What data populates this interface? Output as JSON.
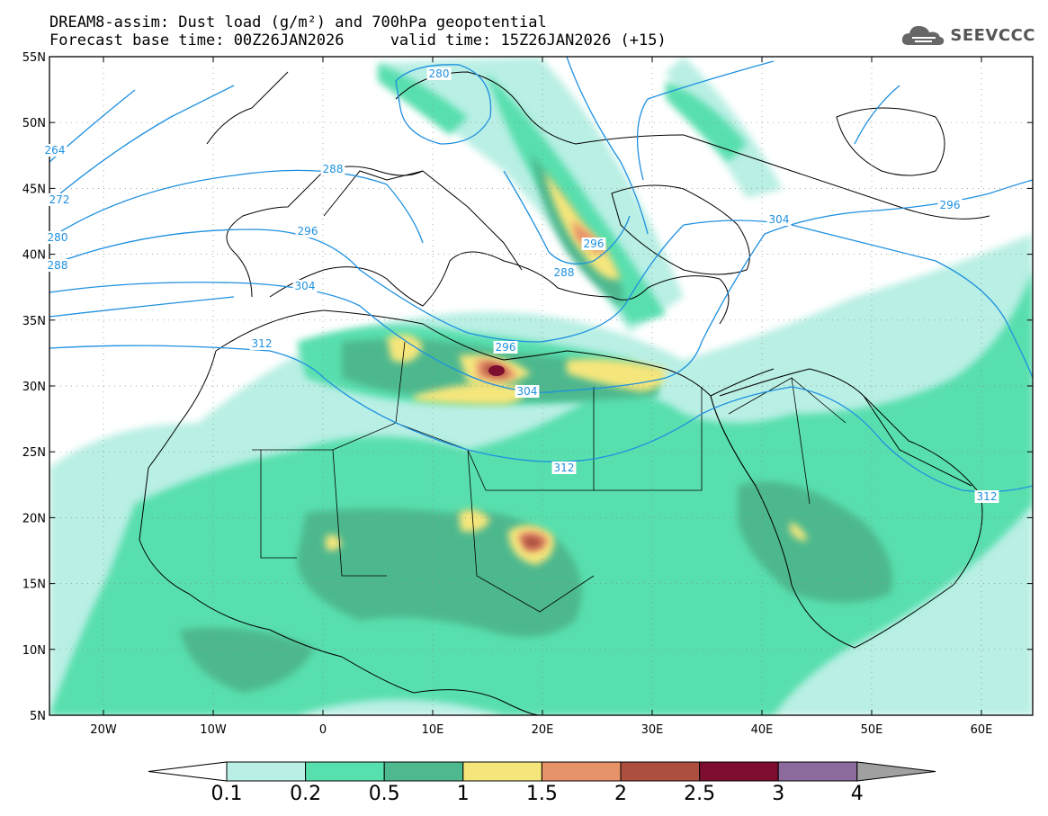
{
  "header": {
    "title_line1": "DREAM8-assim: Dust load (g/m²) and 700hPa geopotential",
    "title_line2": "Forecast base time: 00Z26JAN2026     valid time: 15Z26JAN2026 (+15)",
    "logo_text": "SEEVCCC"
  },
  "map": {
    "lat_labels": [
      "55N",
      "50N",
      "45N",
      "40N",
      "35N",
      "30N",
      "25N",
      "20N",
      "15N",
      "10N",
      "5N"
    ],
    "lon_labels": [
      "20W",
      "10W",
      "0",
      "10E",
      "20E",
      "30E",
      "40E",
      "50E",
      "60E"
    ],
    "contour_labels": [
      "280",
      "288",
      "296",
      "304",
      "312",
      "264",
      "272",
      "280",
      "288",
      "296",
      "304",
      "312",
      "296",
      "304",
      "312",
      "288",
      "296"
    ],
    "contour_color": "#1e90e0"
  },
  "legend": {
    "levels": [
      "0.1",
      "0.2",
      "0.5",
      "1",
      "1.5",
      "2",
      "2.5",
      "3",
      "4"
    ],
    "colors": [
      "#ffffff",
      "#b9efe4",
      "#58dfae",
      "#4eb88e",
      "#f5e67b",
      "#e8926a",
      "#ad4f3f",
      "#7d0e30",
      "#8c6a9c",
      "#a0a0a0"
    ]
  }
}
